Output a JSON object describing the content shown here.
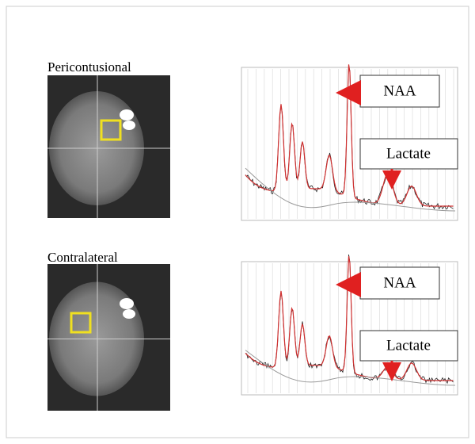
{
  "panels": [
    {
      "label": "Pericontusional",
      "annotations": {
        "naa": "NAA",
        "lactate": "Lactate"
      }
    },
    {
      "label": "Contralateral",
      "annotations": {
        "naa": "NAA",
        "lactate": "Lactate"
      }
    }
  ]
}
